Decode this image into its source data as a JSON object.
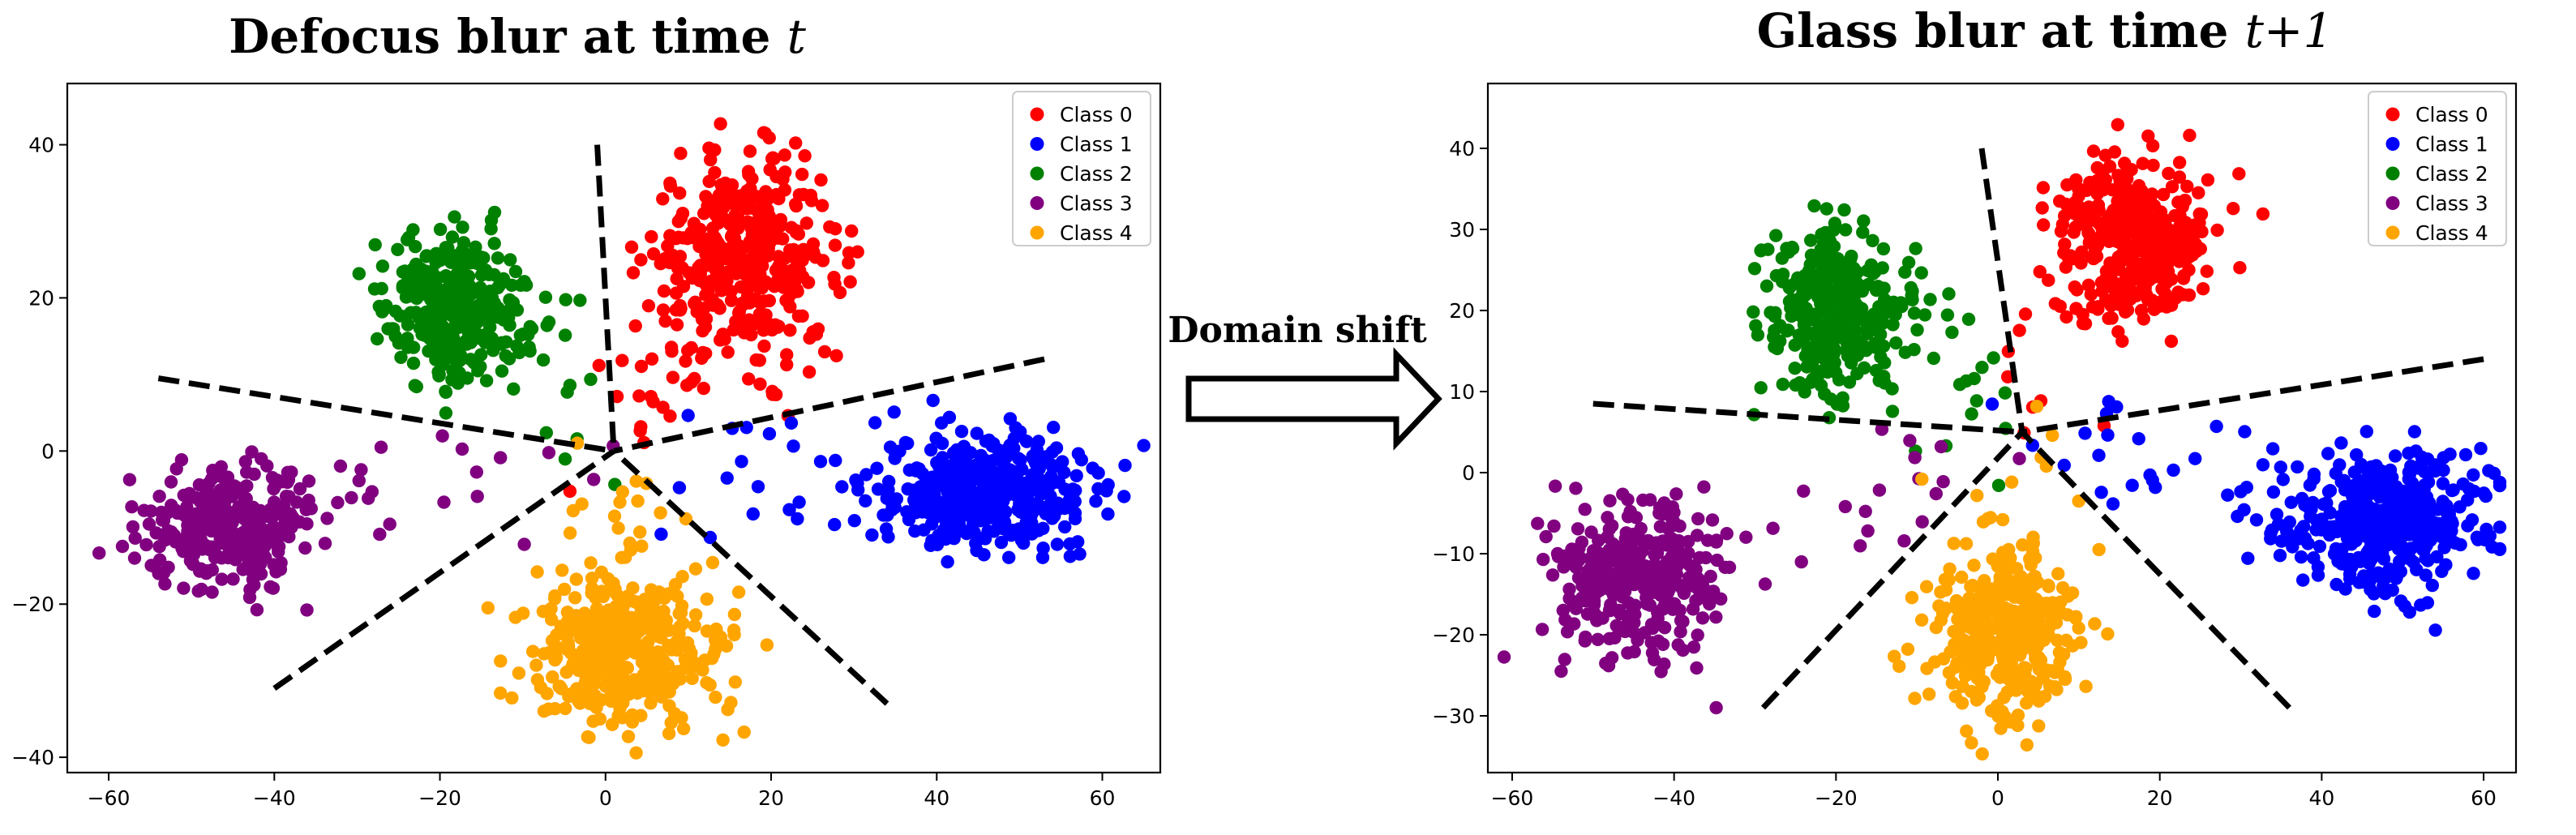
{
  "annotation": {
    "shift_label": "Domain shift"
  },
  "colors": {
    "Class 0": "#ff0000",
    "Class 1": "#0000ff",
    "Class 2": "#008000",
    "Class 3": "#800080",
    "Class 4": "#ffa500"
  },
  "chart_data": [
    {
      "type": "scatter",
      "title_prefix": "Defocus blur at time ",
      "title_math": "t",
      "xlim": [
        -65,
        67
      ],
      "ylim": [
        -42,
        48
      ],
      "xticks": [
        -60,
        -40,
        -20,
        0,
        20,
        40,
        60
      ],
      "yticks": [
        -40,
        -20,
        0,
        20,
        40
      ],
      "grid": false,
      "legend_position": "top-right",
      "legend": [
        "Class 0",
        "Class 1",
        "Class 2",
        "Class 3",
        "Class 4"
      ],
      "clusters": [
        {
          "name": "Class 0",
          "center": [
            17,
            25
          ],
          "spread": [
            8,
            9
          ],
          "count": 380
        },
        {
          "name": "Class 1",
          "center": [
            46,
            -5
          ],
          "spread": [
            9,
            5.5
          ],
          "count": 420
        },
        {
          "name": "Class 2",
          "center": [
            -18,
            19
          ],
          "spread": [
            6,
            6.5
          ],
          "count": 320
        },
        {
          "name": "Class 3",
          "center": [
            -45,
            -10
          ],
          "spread": [
            8,
            5.5
          ],
          "count": 300
        },
        {
          "name": "Class 4",
          "center": [
            2,
            -26
          ],
          "spread": [
            8,
            6
          ],
          "count": 380
        }
      ],
      "boundaries": [
        [
          [
            -1,
            40
          ],
          [
            1,
            0
          ]
        ],
        [
          [
            -54,
            9.5
          ],
          [
            1,
            0
          ]
        ],
        [
          [
            -40,
            -31
          ],
          [
            1,
            0
          ]
        ],
        [
          [
            34,
            -33
          ],
          [
            1,
            0
          ]
        ],
        [
          [
            53,
            12
          ],
          [
            1,
            0
          ]
        ]
      ]
    },
    {
      "type": "scatter",
      "title_prefix": "Glass blur at time ",
      "title_math": "t+1",
      "xlim": [
        -63,
        64
      ],
      "ylim": [
        -37,
        48
      ],
      "xticks": [
        -60,
        -40,
        -20,
        0,
        20,
        40,
        60
      ],
      "yticks": [
        -30,
        -20,
        -10,
        0,
        10,
        20,
        30,
        40
      ],
      "grid": false,
      "legend_position": "top-right",
      "legend": [
        "Class 0",
        "Class 1",
        "Class 2",
        "Class 3",
        "Class 4"
      ],
      "clusters": [
        {
          "name": "Class 0",
          "center": [
            17,
            29
          ],
          "spread": [
            6.5,
            7
          ],
          "count": 360
        },
        {
          "name": "Class 1",
          "center": [
            48,
            -6
          ],
          "spread": [
            8.5,
            5.5
          ],
          "count": 420
        },
        {
          "name": "Class 2",
          "center": [
            -20,
            20
          ],
          "spread": [
            6,
            6.5
          ],
          "count": 320
        },
        {
          "name": "Class 3",
          "center": [
            -45,
            -13
          ],
          "spread": [
            7.5,
            6.5
          ],
          "count": 320
        },
        {
          "name": "Class 4",
          "center": [
            1,
            -20
          ],
          "spread": [
            6,
            6.5
          ],
          "count": 380
        }
      ],
      "boundaries": [
        [
          [
            -2,
            40
          ],
          [
            3,
            5
          ]
        ],
        [
          [
            -50,
            8.5
          ],
          [
            3,
            5
          ]
        ],
        [
          [
            -29,
            -29
          ],
          [
            3,
            5
          ]
        ],
        [
          [
            36,
            -29
          ],
          [
            3,
            5
          ]
        ],
        [
          [
            60,
            14
          ],
          [
            3,
            5
          ]
        ]
      ]
    }
  ]
}
